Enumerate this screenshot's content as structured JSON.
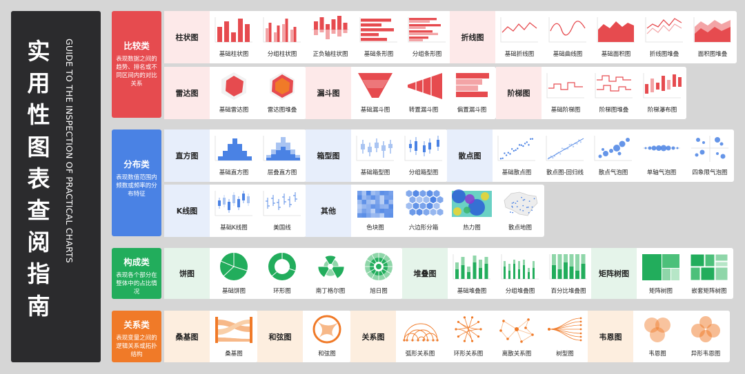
{
  "title": "实用性图表查阅指南",
  "subtitle": "GUIDE TO THE INSPECTION OF PRACTICAL CHARTS",
  "colors": {
    "red": "#e64b4f",
    "blue": "#4a82e4",
    "green": "#22ad5c",
    "orange": "#f07a28"
  },
  "categories": [
    {
      "name": "比较类",
      "desc": "表现数据之间的趋势、排名或不同区间内的对比关系"
    },
    {
      "name": "分布类",
      "desc": "表现数值范围内频数或频率的分布特征"
    },
    {
      "name": "构成类",
      "desc": "表现各个部分在整体中的占比情况"
    },
    {
      "name": "关系类",
      "desc": "表现变量之间的逻辑关系或拓扑结构"
    }
  ],
  "groups": [
    {
      "name": "柱状图",
      "items": [
        {
          "label": "基础柱状图",
          "icon": "basic-bar-icon"
        },
        {
          "label": "分组柱状图",
          "icon": "grouped-bar-icon"
        },
        {
          "label": "正负轴柱状图",
          "icon": "pos-neg-bar-icon"
        },
        {
          "label": "基础条形图",
          "icon": "basic-hbar-icon"
        },
        {
          "label": "分组条形图",
          "icon": "grouped-hbar-icon"
        }
      ]
    },
    {
      "name": "折线图",
      "items": [
        {
          "label": "基础折线图",
          "icon": "basic-line-icon"
        },
        {
          "label": "基础曲线图",
          "icon": "basic-curve-icon"
        },
        {
          "label": "基础面积图",
          "icon": "basic-area-icon"
        },
        {
          "label": "折线图堆叠",
          "icon": "stacked-line-icon"
        },
        {
          "label": "面积图堆叠",
          "icon": "stacked-area-icon"
        }
      ]
    },
    {
      "name": "雷达图",
      "items": [
        {
          "label": "基础雷达图",
          "icon": "basic-radar-icon"
        },
        {
          "label": "雷达图堆叠",
          "icon": "stacked-radar-icon"
        }
      ]
    },
    {
      "name": "漏斗图",
      "items": [
        {
          "label": "基础漏斗图",
          "icon": "basic-funnel-icon"
        },
        {
          "label": "转置漏斗图",
          "icon": "transposed-funnel-icon"
        },
        {
          "label": "偏置漏斗图",
          "icon": "offset-funnel-icon"
        }
      ]
    },
    {
      "name": "阶梯图",
      "items": [
        {
          "label": "基础阶梯图",
          "icon": "basic-step-icon"
        },
        {
          "label": "阶梯图堆叠",
          "icon": "stacked-step-icon"
        },
        {
          "label": "阶梯瀑布图",
          "icon": "step-waterfall-icon"
        }
      ]
    },
    {
      "name": "直方图",
      "items": [
        {
          "label": "基础直方图",
          "icon": "basic-histogram-icon"
        },
        {
          "label": "层叠直方图",
          "icon": "layered-histogram-icon"
        }
      ]
    },
    {
      "name": "箱型图",
      "items": [
        {
          "label": "基础箱型图",
          "icon": "basic-boxplot-icon"
        },
        {
          "label": "分组箱型图",
          "icon": "grouped-boxplot-icon"
        }
      ]
    },
    {
      "name": "散点图",
      "items": [
        {
          "label": "基础散点图",
          "icon": "basic-scatter-icon"
        },
        {
          "label": "散点图-回归线",
          "icon": "scatter-regression-icon"
        },
        {
          "label": "散点气泡图",
          "icon": "scatter-bubble-icon"
        },
        {
          "label": "单轴气泡图",
          "icon": "single-axis-bubble-icon"
        },
        {
          "label": "四象限气泡图",
          "icon": "quadrant-bubble-icon"
        }
      ]
    },
    {
      "name": "K线图",
      "items": [
        {
          "label": "基础K线图",
          "icon": "candlestick-icon"
        },
        {
          "label": "美国线",
          "icon": "ohlc-icon"
        }
      ]
    },
    {
      "name": "其他",
      "items": [
        {
          "label": "色块图",
          "icon": "color-block-icon"
        },
        {
          "label": "六边形分箱",
          "icon": "hexbin-icon"
        },
        {
          "label": "热力图",
          "icon": "heatmap-icon"
        },
        {
          "label": "散点地图",
          "icon": "scatter-map-icon"
        }
      ]
    },
    {
      "name": "饼图",
      "items": [
        {
          "label": "基础饼图",
          "icon": "basic-pie-icon"
        },
        {
          "label": "环形图",
          "icon": "donut-icon"
        },
        {
          "label": "南丁格尔图",
          "icon": "nightingale-icon"
        },
        {
          "label": "旭日图",
          "icon": "sunburst-icon"
        }
      ]
    },
    {
      "name": "堆叠图",
      "items": [
        {
          "label": "基础堆叠图",
          "icon": "basic-stacked-icon"
        },
        {
          "label": "分组堆叠图",
          "icon": "grouped-stacked-icon"
        },
        {
          "label": "百分比堆叠图",
          "icon": "percent-stacked-icon"
        }
      ]
    },
    {
      "name": "矩阵树图",
      "items": [
        {
          "label": "矩阵树图",
          "icon": "treemap-icon"
        },
        {
          "label": "嵌套矩阵树图",
          "icon": "nested-treemap-icon"
        }
      ]
    },
    {
      "name": "桑基图",
      "items": [
        {
          "label": "桑基图",
          "icon": "sankey-icon"
        }
      ]
    },
    {
      "name": "和弦图",
      "items": [
        {
          "label": "和弦图",
          "icon": "chord-icon"
        }
      ]
    },
    {
      "name": "关系图",
      "items": [
        {
          "label": "弧形关系图",
          "icon": "arc-network-icon"
        },
        {
          "label": "环形关系图",
          "icon": "circular-network-icon"
        },
        {
          "label": "离散关系图",
          "icon": "force-network-icon"
        },
        {
          "label": "树型图",
          "icon": "tree-icon"
        }
      ]
    },
    {
      "name": "韦恩图",
      "items": [
        {
          "label": "韦恩图",
          "icon": "venn-icon"
        },
        {
          "label": "异形韦恩图",
          "icon": "irregular-venn-icon"
        }
      ]
    }
  ]
}
